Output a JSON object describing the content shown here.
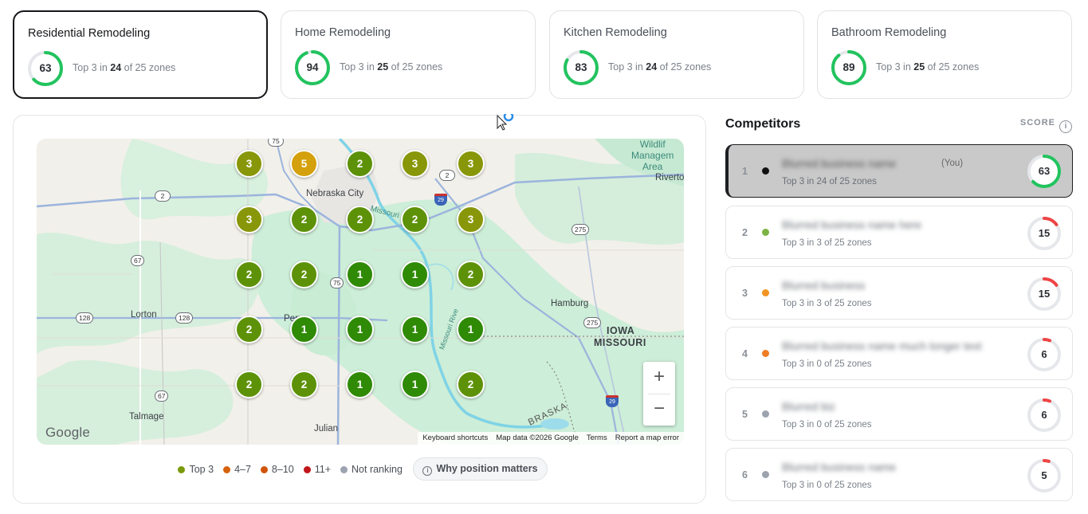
{
  "keywords": [
    {
      "title": "Residential Remodeling",
      "score": "63",
      "score_value": 63,
      "sub_pre": "Top 3 in ",
      "sub_bold": "24",
      "sub_post": " of 25 zones",
      "active": true
    },
    {
      "title": "Home Remodeling",
      "score": "94",
      "score_value": 94,
      "sub_pre": "Top 3 in ",
      "sub_bold": "25",
      "sub_post": " of 25 zones",
      "active": false
    },
    {
      "title": "Kitchen Remodeling",
      "score": "83",
      "score_value": 83,
      "sub_pre": "Top 3 in ",
      "sub_bold": "24",
      "sub_post": " of 25 zones",
      "active": false
    },
    {
      "title": "Bathroom Remodeling",
      "score": "89",
      "score_value": 89,
      "sub_pre": "Top 3 in ",
      "sub_bold": "25",
      "sub_post": " of 25 zones",
      "active": false
    }
  ],
  "colors": {
    "ring_good": "#22c35e",
    "ring_bad": "#ef4444",
    "ring_track": "#e5e7eb",
    "rank_1": "#2f8a06",
    "rank_2": "#5d9208",
    "rank_3": "#889709",
    "rank_5": "#d4a00b"
  },
  "map": {
    "grid": [
      [
        "3",
        "5",
        "2",
        "3",
        "3"
      ],
      [
        "3",
        "2",
        "2",
        "2",
        "3"
      ],
      [
        "2",
        "2",
        "1",
        "1",
        "2"
      ],
      [
        "2",
        "1",
        "1",
        "1",
        "1"
      ],
      [
        "2",
        "2",
        "1",
        "1",
        "2"
      ]
    ],
    "places": {
      "nebraska_city": "Nebraska City",
      "lorton": "Lorton",
      "hamburg": "Hamburg",
      "iowa": "IOWA",
      "missouri": "MISSOURI",
      "riverton": "Riverto",
      "talmage": "Talmage",
      "julian": "Julian",
      "peru": "Peru",
      "braska": "BRASKA",
      "wildlife": "Wildlif\nManagem\nArea",
      "missouri_river_1": "Missouri",
      "missouri_river_2": "Missouri Rive"
    },
    "routes": {
      "r75a": "75",
      "r2a": "2",
      "r2b": "2",
      "r29a": "29",
      "r275a": "275",
      "r67a": "67",
      "r75b": "75",
      "r128a": "128",
      "r128b": "128",
      "r275b": "275",
      "r67b": "67",
      "r29b": "29"
    },
    "zoom_in": "+",
    "zoom_out": "−",
    "google": "Google",
    "attribution": {
      "shortcuts": "Keyboard shortcuts",
      "data": "Map data ©2026 Google",
      "terms": "Terms",
      "report": "Report a map error"
    }
  },
  "legend": [
    {
      "label": "Top 3",
      "color": "#7a9a0c"
    },
    {
      "label": "4–7",
      "color": "#d6620c"
    },
    {
      "label": "8–10",
      "color": "#d0540c"
    },
    {
      "label": "11+",
      "color": "#c0161b"
    },
    {
      "label": "Not ranking",
      "color": "#9ca3af"
    }
  ],
  "why_button": "Why position matters",
  "competitors": {
    "title": "Competitors",
    "score_header": "SCORE",
    "info_icon": "i",
    "you_tag": "(You)",
    "items": [
      {
        "rank": "1",
        "name": "Blurred business name",
        "sub": "Top 3 in 24 of 25 zones",
        "score": "63",
        "score_value": 63,
        "dot": "#111111",
        "you": true
      },
      {
        "rank": "2",
        "name": "Blurred business name here",
        "sub": "Top 3 in 3 of 25 zones",
        "score": "15",
        "score_value": 15,
        "dot": "#7cb342",
        "you": false
      },
      {
        "rank": "3",
        "name": "Blurred business",
        "sub": "Top 3 in 3 of 25 zones",
        "score": "15",
        "score_value": 15,
        "dot": "#f29423",
        "you": false
      },
      {
        "rank": "4",
        "name": "Blurred business name much longer text",
        "sub": "Top 3 in 0 of 25 zones",
        "score": "6",
        "score_value": 6,
        "dot": "#ef7d22",
        "you": false
      },
      {
        "rank": "5",
        "name": "Blurred biz",
        "sub": "Top 3 in 0 of 25 zones",
        "score": "6",
        "score_value": 6,
        "dot": "#9ca3af",
        "you": false
      },
      {
        "rank": "6",
        "name": "Blurred business name",
        "sub": "Top 3 in 0 of 25 zones",
        "score": "5",
        "score_value": 5,
        "dot": "#9ca3af",
        "you": false
      }
    ]
  }
}
